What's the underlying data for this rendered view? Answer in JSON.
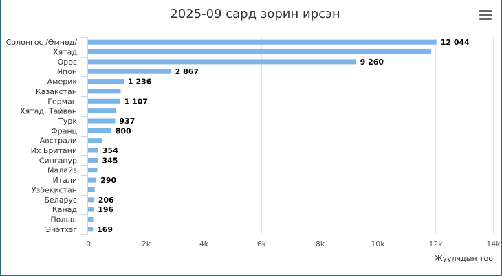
{
  "chart_data": {
    "type": "bar",
    "orientation": "horizontal",
    "title": "2025-09 сард зорин ирсэн",
    "xlabel": "Жуулчдын тоо",
    "ylabel": "",
    "xlim": [
      0,
      14000
    ],
    "x_ticks": [
      {
        "value": 0,
        "label": "0"
      },
      {
        "value": 2000,
        "label": "2k"
      },
      {
        "value": 4000,
        "label": "4k"
      },
      {
        "value": 6000,
        "label": "6k"
      },
      {
        "value": 8000,
        "label": "8k"
      },
      {
        "value": 10000,
        "label": "10k"
      },
      {
        "value": 12000,
        "label": "12k"
      },
      {
        "value": 14000,
        "label": "14k"
      }
    ],
    "grid": "vertical",
    "bar_color": "#7cb5ec",
    "categories": [
      "Солонгос /Өмнөд/",
      "Хятад",
      "Орос",
      "Япон",
      "Америк",
      "Казакстан",
      "Герман",
      "Хятад, Тайван",
      "Турк",
      "Франц",
      "Австрали",
      "Их Британи",
      "Сингапур",
      "Малайз",
      "Итали",
      "Узбекистан",
      "Беларус",
      "Канад",
      "Польш",
      "Энэтхэг"
    ],
    "values": [
      12044,
      11860,
      9260,
      2867,
      1236,
      1130,
      1107,
      950,
      937,
      800,
      490,
      354,
      345,
      320,
      290,
      230,
      206,
      196,
      180,
      169
    ],
    "data_labels": [
      "12 044",
      "",
      "9 260",
      "2 867",
      "1 236",
      "",
      "1 107",
      "",
      "937",
      "800",
      "",
      "354",
      "345",
      "",
      "290",
      "",
      "206",
      "196",
      "",
      "169"
    ]
  },
  "toolbar": {
    "menu_icon": "hamburger-menu-icon"
  }
}
